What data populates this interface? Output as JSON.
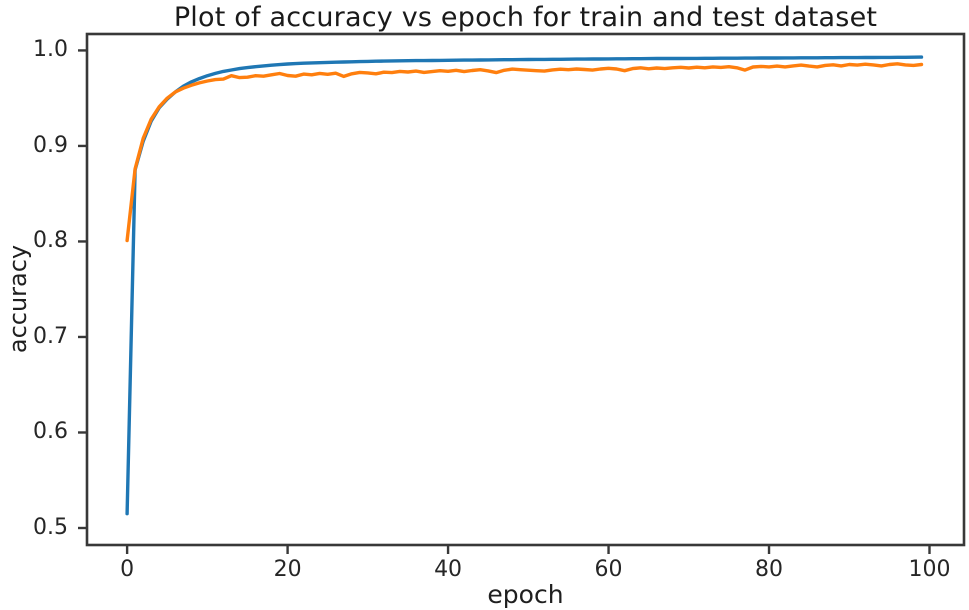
{
  "chart_data": {
    "type": "line",
    "title": "Plot of accuracy vs epoch for train and test dataset",
    "xlabel": "epoch",
    "ylabel": "accuracy",
    "xlim": [
      -5,
      104.3
    ],
    "ylim": [
      0.4822,
      1.0172
    ],
    "grid": false,
    "legend": "none",
    "xticks": [
      0,
      20,
      40,
      60,
      80,
      100
    ],
    "xtick_labels": [
      "0",
      "20",
      "40",
      "60",
      "80",
      "100"
    ],
    "yticks": [
      1.0,
      0.9,
      0.8,
      0.7,
      0.6,
      0.5
    ],
    "ytick_labels": [
      "1.0",
      "0.9",
      "0.8",
      "0.7",
      "0.6",
      "0.5"
    ],
    "x": [
      0,
      1,
      2,
      3,
      4,
      5,
      6,
      7,
      8,
      9,
      10,
      11,
      12,
      13,
      14,
      15,
      16,
      17,
      18,
      19,
      20,
      21,
      22,
      23,
      24,
      25,
      26,
      27,
      28,
      29,
      30,
      31,
      32,
      33,
      34,
      35,
      36,
      37,
      38,
      39,
      40,
      41,
      42,
      43,
      44,
      45,
      46,
      47,
      48,
      49,
      50,
      51,
      52,
      53,
      54,
      55,
      56,
      57,
      58,
      59,
      60,
      61,
      62,
      63,
      64,
      65,
      66,
      67,
      68,
      69,
      70,
      71,
      72,
      73,
      74,
      75,
      76,
      77,
      78,
      79,
      80,
      81,
      82,
      83,
      84,
      85,
      86,
      87,
      88,
      89,
      90,
      91,
      92,
      93,
      94,
      95,
      96,
      97,
      98,
      99
    ],
    "series": [
      {
        "name": "train",
        "color": "#1f77b4",
        "values": [
          0.515,
          0.875,
          0.905,
          0.926,
          0.94,
          0.949,
          0.9565,
          0.9625,
          0.967,
          0.9705,
          0.9735,
          0.976,
          0.978,
          0.9795,
          0.981,
          0.982,
          0.983,
          0.9838,
          0.9845,
          0.9852,
          0.9858,
          0.9862,
          0.9866,
          0.9869,
          0.9872,
          0.9875,
          0.9877,
          0.9879,
          0.9881,
          0.9883,
          0.9885,
          0.9887,
          0.9888,
          0.989,
          0.9891,
          0.9892,
          0.9893,
          0.9894,
          0.9895,
          0.9896,
          0.9897,
          0.9898,
          0.9899,
          0.9899,
          0.99,
          0.9901,
          0.9902,
          0.9903,
          0.9903,
          0.9904,
          0.9905,
          0.9906,
          0.9906,
          0.9907,
          0.9907,
          0.9908,
          0.9909,
          0.9909,
          0.991,
          0.991,
          0.9911,
          0.9912,
          0.9912,
          0.9913,
          0.9913,
          0.9914,
          0.9915,
          0.9915,
          0.9916,
          0.9916,
          0.9917,
          0.9917,
          0.9918,
          0.9918,
          0.9919,
          0.9919,
          0.9919,
          0.992,
          0.992,
          0.9921,
          0.9921,
          0.9921,
          0.9922,
          0.9922,
          0.9923,
          0.9923,
          0.9923,
          0.9924,
          0.9924,
          0.9925,
          0.9925,
          0.9925,
          0.9926,
          0.9926,
          0.9927,
          0.9927,
          0.9928,
          0.9928,
          0.9929,
          0.993
        ]
      },
      {
        "name": "test",
        "color": "#ff7f0e",
        "values": [
          0.801,
          0.876,
          0.908,
          0.928,
          0.941,
          0.95,
          0.9565,
          0.9605,
          0.9635,
          0.966,
          0.968,
          0.9695,
          0.97,
          0.9735,
          0.9715,
          0.972,
          0.9735,
          0.973,
          0.9745,
          0.9758,
          0.9738,
          0.973,
          0.9752,
          0.9745,
          0.976,
          0.975,
          0.9762,
          0.9728,
          0.9755,
          0.977,
          0.9765,
          0.9755,
          0.9772,
          0.9768,
          0.978,
          0.9774,
          0.9784,
          0.977,
          0.9778,
          0.9788,
          0.9782,
          0.9792,
          0.9778,
          0.979,
          0.9798,
          0.9786,
          0.9768,
          0.9792,
          0.9805,
          0.9798,
          0.9793,
          0.9788,
          0.9784,
          0.9796,
          0.9803,
          0.9798,
          0.9806,
          0.98,
          0.9794,
          0.9806,
          0.9813,
          0.9806,
          0.9788,
          0.981,
          0.9818,
          0.9808,
          0.9816,
          0.981,
          0.9818,
          0.9823,
          0.9816,
          0.9824,
          0.9818,
          0.9828,
          0.9822,
          0.983,
          0.9818,
          0.9794,
          0.9826,
          0.9833,
          0.9828,
          0.9836,
          0.9828,
          0.9838,
          0.9846,
          0.9836,
          0.9828,
          0.9843,
          0.985,
          0.9838,
          0.9853,
          0.9846,
          0.9856,
          0.9848,
          0.9838,
          0.9853,
          0.986,
          0.9848,
          0.9843,
          0.9853
        ]
      }
    ]
  },
  "colors": {
    "spine": "#383838",
    "train_line": "#1f77b4",
    "test_line": "#ff7f0e",
    "background": "#ffffff",
    "text": "#1c1c1c"
  }
}
